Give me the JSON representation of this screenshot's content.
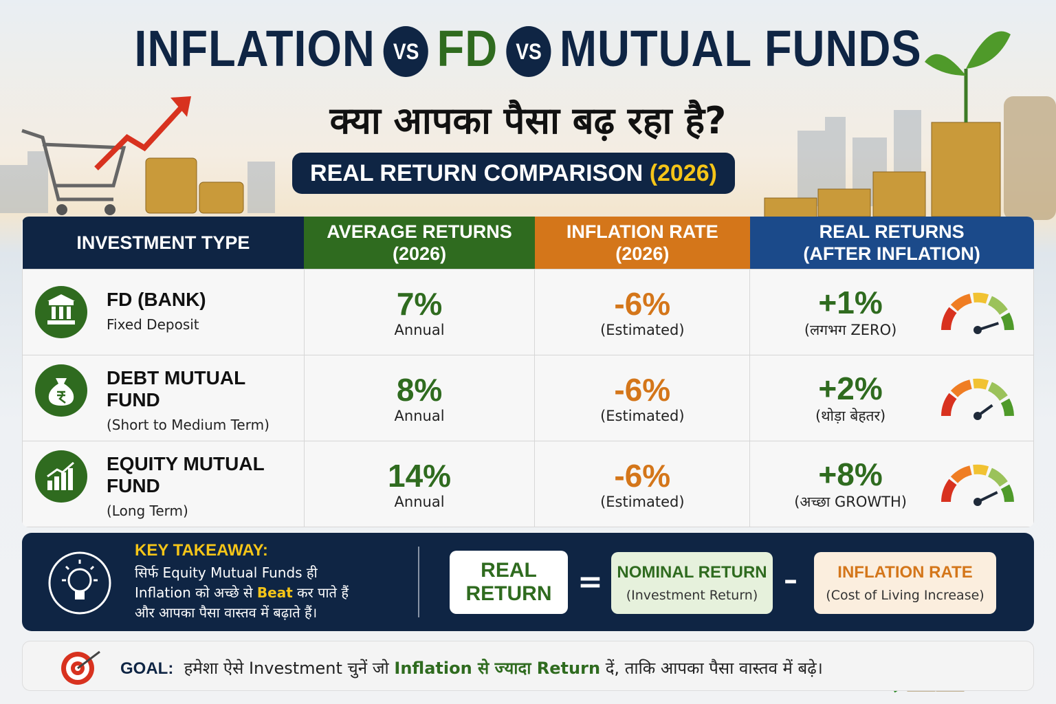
{
  "header": {
    "title": {
      "word1": "INFLATION",
      "vs1": "VS",
      "word2": "FD",
      "vs2": "VS",
      "word3": "MUTUAL FUNDS"
    },
    "subtitle": "क्या आपका पैसा बढ़ रहा है?",
    "badge": {
      "text": "REAL RETURN COMPARISON",
      "year": "(2026)"
    }
  },
  "table": {
    "headers": [
      [
        "INVESTMENT TYPE"
      ],
      [
        "AVERAGE RETURNS",
        "(2026)"
      ],
      [
        "INFLATION RATE",
        "(2026)"
      ],
      [
        "REAL RETURNS",
        "(AFTER INFLATION)"
      ]
    ],
    "rows": [
      {
        "name": "FD (BANK)",
        "description": "Fixed Deposit",
        "average_return": "7%",
        "average_note": "Annual",
        "inflation": "-6%",
        "inflation_note": "(Estimated)",
        "real_return": "+1%",
        "real_note": "(लगभग ZERO)"
      },
      {
        "name": "DEBT MUTUAL FUND",
        "description": "(Short to Medium Term)",
        "average_return": "8%",
        "average_note": "Annual",
        "inflation": "-6%",
        "inflation_note": "(Estimated)",
        "real_return": "+2%",
        "real_note": "(थोड़ा बेहतर)"
      },
      {
        "name": "EQUITY MUTUAL FUND",
        "description": "(Long Term)",
        "average_return": "14%",
        "average_note": "Annual",
        "inflation": "-6%",
        "inflation_note": "(Estimated)",
        "real_return": "+8%",
        "real_note": "(अच्छा GROWTH)"
      }
    ]
  },
  "takeaway": {
    "label": "KEY TAKEAWAY:",
    "line1": "सिर्फ Equity Mutual Funds ही",
    "line2": {
      "before": "Inflation को अच्छे से",
      "highlight": "Beat",
      "after": "कर पाते हैं"
    },
    "line3": "और आपका पैसा वास्तव में बढ़ाते हैं।"
  },
  "formula": {
    "result": [
      "REAL",
      "RETURN"
    ],
    "equals": "=",
    "nominal": {
      "title": "NOMINAL RETURN",
      "note": "(Investment Return)"
    },
    "minus": "–",
    "inflation": {
      "title": "INFLATION RATE",
      "note": "(Cost of Living Increase)"
    }
  },
  "goal": {
    "label": "GOAL:",
    "before": "हमेशा ऐसे Investment चुनें जो",
    "highlight": "Inflation से ज्यादा Return",
    "after": "दें, ताकि आपका पैसा वास्तव में बढ़े।"
  }
}
